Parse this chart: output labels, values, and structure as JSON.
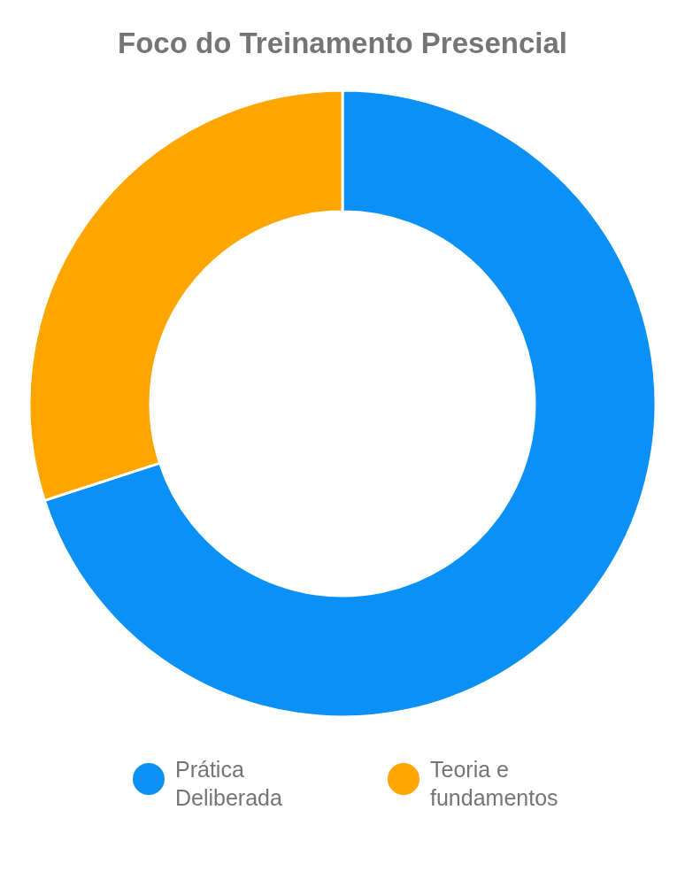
{
  "chart_data": {
    "type": "donut",
    "title": "Foco do Treinamento Presencial",
    "categories": [
      "Prática Deliberada",
      "Teoria e fundamentos"
    ],
    "values": [
      70,
      30
    ],
    "colors": [
      "#0b90f6",
      "#ffa500"
    ],
    "legend": "bottom"
  }
}
